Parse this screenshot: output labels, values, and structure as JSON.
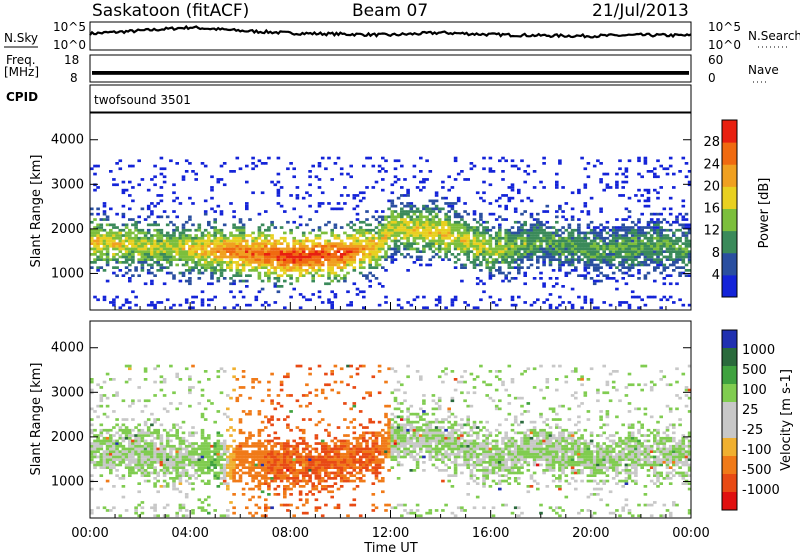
{
  "header": {
    "station": "Saskatoon (fitACF)",
    "beam": "Beam 07",
    "date": "21/Jul/2013"
  },
  "side_labels": {
    "nsky": "N.Sky",
    "freq_line1": "Freq.",
    "freq_line2": "[MHz]",
    "cpid": "CPID",
    "nsearch": "N.Search",
    "nave": "Nave"
  },
  "cpid_text": "twofsound 3501",
  "colors": {
    "power": [
      "#1424d8",
      "#2a4fa0",
      "#3a8a5a",
      "#7cbf3c",
      "#e8d020",
      "#f0a020",
      "#f06a10",
      "#e82010"
    ],
    "velocity": [
      "#2030b0",
      "#2a6a3c",
      "#3fa23f",
      "#80cc50",
      "#c8c8c8",
      "#c8c8c8",
      "#f0b030",
      "#f07a18",
      "#e84a14",
      "#e01010"
    ],
    "axis": "#000000"
  },
  "chart_data": [
    {
      "type": "line",
      "panel": "noise",
      "left_label": "N.Sky",
      "right_label": "N.Search",
      "yticks_left": [
        "10^5",
        "10^0"
      ],
      "yticks_right": [
        "10^5",
        "10^0"
      ],
      "x_hours": [
        0,
        2,
        4,
        6,
        8,
        10,
        12,
        14,
        16,
        18,
        20,
        22,
        24
      ],
      "log10_noise": [
        3.0,
        3.6,
        4.3,
        3.6,
        3.1,
        2.9,
        2.7,
        3.2,
        2.8,
        2.6,
        2.5,
        2.7,
        2.6
      ]
    },
    {
      "type": "line",
      "panel": "frequency",
      "left_label": "Freq. [MHz]",
      "right_label": "Nave",
      "yticks_left": [
        "18",
        "8"
      ],
      "yticks_right": [
        "60",
        "0"
      ],
      "ylim_mhz": [
        8,
        18
      ],
      "freq_mhz_low": 10.5,
      "freq_mhz_high": 12.0
    },
    {
      "type": "heatmap",
      "panel": "power",
      "xlabel": "",
      "ylabel": "Slant Range [km]",
      "colorbar_label": "Power [dB]",
      "colorbar_ticks": [
        "4",
        "8",
        "12",
        "16",
        "20",
        "24",
        "28"
      ],
      "clim": [
        0,
        32
      ],
      "xlim_hours": [
        0,
        24
      ],
      "ylim_km": [
        180,
        4600
      ],
      "yticks": [
        "1000",
        "2000",
        "3000",
        "4000"
      ],
      "band_center_km_by_hour": [
        [
          0,
          1700
        ],
        [
          2,
          1600
        ],
        [
          4,
          1500
        ],
        [
          6,
          1450
        ],
        [
          8,
          1350
        ],
        [
          10,
          1400
        ],
        [
          11.5,
          1600
        ],
        [
          12,
          2000
        ],
        [
          14,
          1900
        ],
        [
          16,
          1500
        ],
        [
          18,
          1700
        ],
        [
          20,
          1500
        ],
        [
          22,
          1600
        ],
        [
          24,
          1550
        ]
      ],
      "peak_power_db_by_hour": [
        [
          0,
          20
        ],
        [
          3,
          16
        ],
        [
          6,
          26
        ],
        [
          8,
          30
        ],
        [
          10,
          28
        ],
        [
          12,
          18
        ],
        [
          14,
          20
        ],
        [
          18,
          12
        ],
        [
          24,
          12
        ]
      ]
    },
    {
      "type": "heatmap",
      "panel": "velocity",
      "xlabel": "Time UT",
      "ylabel": "Slant Range [km]",
      "colorbar_label": "Velocity [m s-1]",
      "colorbar_ticks": [
        "1000",
        "500",
        "100",
        "25",
        "-25",
        "-100",
        "-500",
        "-1000"
      ],
      "xlim_hours": [
        0,
        24
      ],
      "xticks": [
        "00:00",
        "04:00",
        "08:00",
        "12:00",
        "16:00",
        "20:00",
        "00:00"
      ],
      "ylim_km": [
        180,
        4600
      ],
      "yticks": [
        "1000",
        "2000",
        "3000",
        "4000"
      ],
      "dominant_velocity_by_hour": [
        [
          0,
          25
        ],
        [
          4,
          25
        ],
        [
          5,
          100
        ],
        [
          7,
          -500
        ],
        [
          9,
          -500
        ],
        [
          11.5,
          -500
        ],
        [
          12,
          25
        ],
        [
          24,
          25
        ]
      ]
    }
  ]
}
